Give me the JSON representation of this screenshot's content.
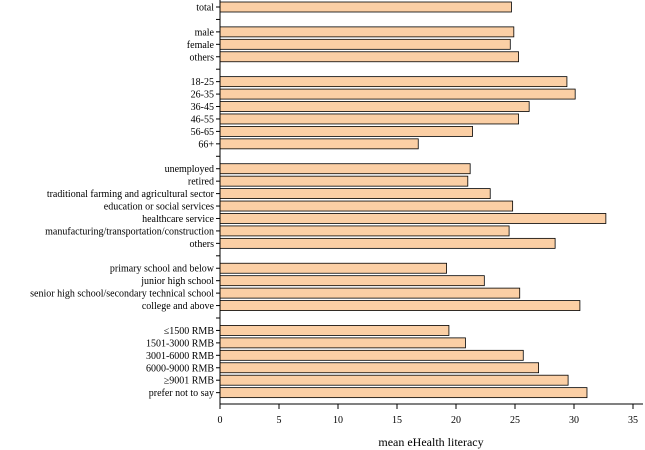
{
  "chart_data": {
    "type": "bar",
    "orientation": "horizontal",
    "title": "",
    "xlabel": "mean eHealth literacy",
    "ylabel": "",
    "xlim": [
      0,
      35
    ],
    "xticks": [
      0,
      5,
      10,
      15,
      20,
      25,
      30,
      35
    ],
    "grid": false,
    "legend": "none",
    "bar_color": "#fbcfa5",
    "categories": [
      "total",
      "",
      "male",
      "female",
      "others",
      "",
      "18-25",
      "26-35",
      "36-45",
      "46-55",
      "56-65",
      "66+",
      "",
      "unemployed",
      "retired",
      "traditional farming and agricultural sector",
      "education or social services",
      "healthcare service",
      "manufacturing/transportation/construction",
      "others",
      "",
      "primary school and below",
      "junior high school",
      "senior high school/secondary technical school",
      "college and above",
      "",
      "≤1500 RMB",
      "1501-3000 RMB",
      "3001-6000 RMB",
      "6000-9000 RMB",
      "≥9001 RMB",
      "prefer not to say"
    ],
    "values": [
      24.7,
      null,
      24.9,
      24.6,
      25.3,
      null,
      29.4,
      30.1,
      26.2,
      25.3,
      21.4,
      16.8,
      null,
      21.2,
      21.0,
      22.9,
      24.8,
      32.7,
      24.5,
      28.4,
      null,
      19.2,
      22.4,
      25.4,
      30.5,
      null,
      19.4,
      20.8,
      25.7,
      27.0,
      29.5,
      31.1
    ]
  }
}
